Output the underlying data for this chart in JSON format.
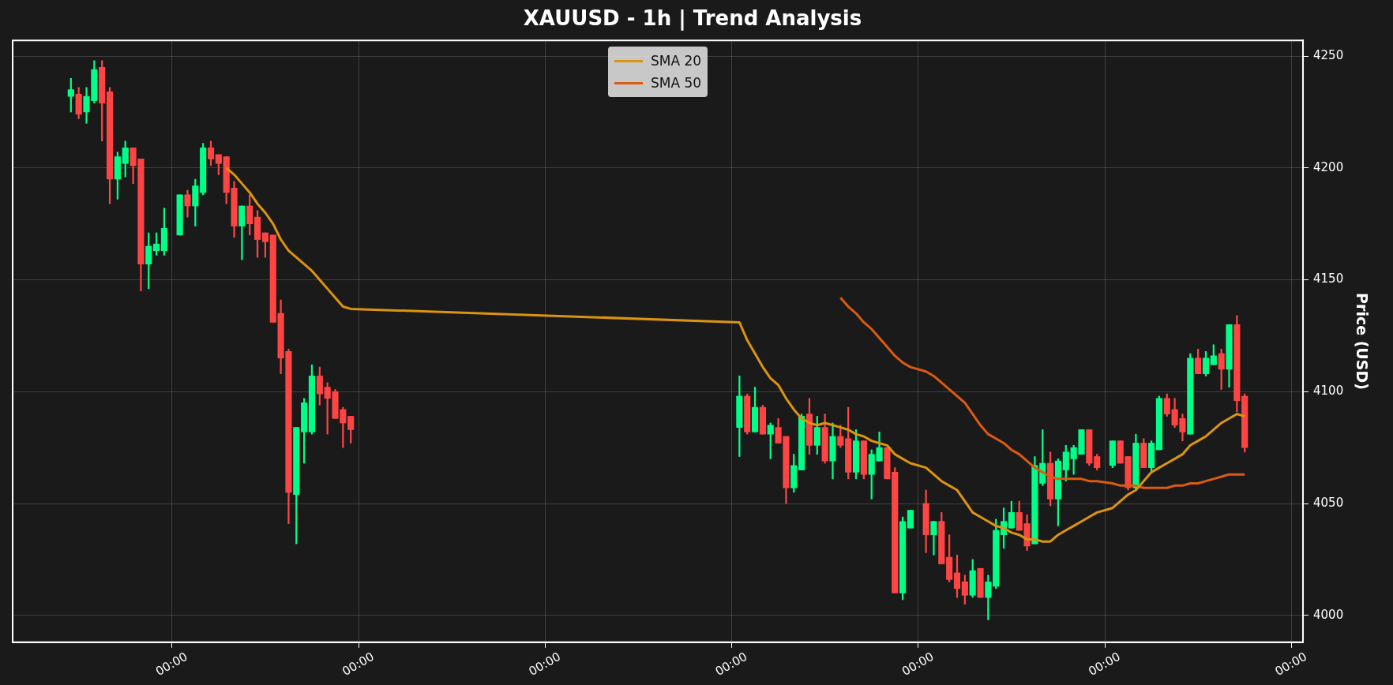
{
  "chart_data": {
    "type": "candlestick",
    "title": "XAUUSD - 1h | Trend Analysis",
    "ylabel": "Price (USD)",
    "x": [
      "--11-20T11:00",
      "--11-20T12:00",
      "--11-20T13:00",
      "--11-20T14:00",
      "--11-20T15:00",
      "--11-20T16:00",
      "--11-20T17:00",
      "--11-20T18:00",
      "--11-20T19:00",
      "--11-20T20:00",
      "--11-20T21:00",
      "--11-20T22:00",
      "--11-20T23:00",
      "--11-21T01:00",
      "--11-21T02:00",
      "--11-21T03:00",
      "--11-21T04:00",
      "--11-21T05:00",
      "--11-21T06:00",
      "--11-21T07:00",
      "--11-21T08:00",
      "--11-21T09:00",
      "--11-21T10:00",
      "--11-21T11:00",
      "--11-21T12:00",
      "--11-21T13:00",
      "--11-21T14:00",
      "--11-21T15:00",
      "--11-21T16:00",
      "--11-21T17:00",
      "--11-21T18:00",
      "--11-21T19:00",
      "--11-21T20:00",
      "--11-21T21:00",
      "--11-21T22:00",
      "--11-21T23:00",
      "--11-24T01:00",
      "--11-24T02:00",
      "--11-24T03:00",
      "--11-24T04:00",
      "--11-24T05:00",
      "--11-24T06:00",
      "--11-24T07:00",
      "--11-24T08:00",
      "--11-24T09:00",
      "--11-24T10:00",
      "--11-24T11:00",
      "--11-24T12:00",
      "--11-24T13:00",
      "--11-24T14:00",
      "--11-24T15:00",
      "--11-24T16:00",
      "--11-24T17:00",
      "--11-24T18:00",
      "--11-24T19:00",
      "--11-24T20:00",
      "--11-24T21:00",
      "--11-24T22:00",
      "--11-24T23:00",
      "--11-25T01:00",
      "--11-25T02:00",
      "--11-25T03:00",
      "--11-25T04:00",
      "--11-25T05:00",
      "--11-25T06:00",
      "--11-25T07:00",
      "--11-25T08:00",
      "--11-25T09:00",
      "--11-25T10:00",
      "--11-25T11:00",
      "--11-25T12:00",
      "--11-25T13:00",
      "--11-25T14:00",
      "--11-25T15:00",
      "--11-25T16:00",
      "--11-25T17:00",
      "--11-25T18:00",
      "--11-25T19:00",
      "--11-25T20:00",
      "--11-25T21:00",
      "--11-25T22:00",
      "--11-25T23:00",
      "--11-26T01:00",
      "--11-26T02:00",
      "--11-26T03:00",
      "--11-26T04:00",
      "--11-26T05:00",
      "--11-26T06:00",
      "--11-26T07:00",
      "--11-26T08:00",
      "--11-26T09:00",
      "--11-26T10:00",
      "--11-26T11:00",
      "--11-26T12:00",
      "--11-26T13:00",
      "--11-26T14:00",
      "--11-26T15:00",
      "--11-26T16:00",
      "--11-26T17:00",
      "--11-26T18:00"
    ],
    "ohlc": [
      [
        4232,
        4240,
        4225,
        4235
      ],
      [
        4233,
        4236,
        4222,
        4224
      ],
      [
        4225,
        4236,
        4220,
        4232
      ],
      [
        4230,
        4248,
        4229,
        4244
      ],
      [
        4245,
        4248,
        4212,
        4229
      ],
      [
        4234,
        4236,
        4184,
        4195
      ],
      [
        4195,
        4207,
        4186,
        4205
      ],
      [
        4202,
        4212,
        4196,
        4209
      ],
      [
        4209,
        4209,
        4193,
        4201
      ],
      [
        4204,
        4204,
        4145,
        4157
      ],
      [
        4157,
        4171,
        4146,
        4165
      ],
      [
        4163,
        4171,
        4161,
        4166
      ],
      [
        4163,
        4182,
        4161,
        4173
      ],
      [
        4170,
        4188,
        4170,
        4188
      ],
      [
        4188,
        4190,
        4178,
        4183
      ],
      [
        4183,
        4195,
        4174,
        4192
      ],
      [
        4189,
        4211,
        4188,
        4209
      ],
      [
        4209,
        4212,
        4201,
        4204
      ],
      [
        4206,
        4206,
        4197,
        4202
      ],
      [
        4205,
        4205,
        4184,
        4189
      ],
      [
        4191,
        4194,
        4169,
        4174
      ],
      [
        4174,
        4183,
        4159,
        4183
      ],
      [
        4183,
        4188,
        4170,
        4175
      ],
      [
        4178,
        4181,
        4160,
        4168
      ],
      [
        4171,
        4171,
        4160,
        4167
      ],
      [
        4170,
        4170,
        4131,
        4131
      ],
      [
        4135,
        4141,
        4108,
        4115
      ],
      [
        4118,
        4119,
        4041,
        4055
      ],
      [
        4054,
        4084,
        4032,
        4084
      ],
      [
        4082,
        4097,
        4068,
        4095
      ],
      [
        4082,
        4112,
        4081,
        4107
      ],
      [
        4107,
        4111,
        4094,
        4099
      ],
      [
        4102,
        4104,
        4081,
        4097
      ],
      [
        4100,
        4101,
        4088,
        4088
      ],
      [
        4092,
        4093,
        4075,
        4086
      ],
      [
        4089,
        4089,
        4077,
        4083
      ],
      [
        4084,
        4107,
        4071,
        4098
      ],
      [
        4098,
        4099,
        4081,
        4082
      ],
      [
        4082,
        4102,
        4082,
        4093
      ],
      [
        4093,
        4094,
        4081,
        4081
      ],
      [
        4081,
        4086,
        4070,
        4085
      ],
      [
        4084,
        4088,
        4077,
        4077
      ],
      [
        4080,
        4080,
        4050,
        4057
      ],
      [
        4057,
        4072,
        4055,
        4067
      ],
      [
        4065,
        4090,
        4065,
        4089
      ],
      [
        4090,
        4097,
        4072,
        4076
      ],
      [
        4076,
        4089,
        4072,
        4084
      ],
      [
        4084,
        4090,
        4068,
        4069
      ],
      [
        4069,
        4086,
        4061,
        4080
      ],
      [
        4080,
        4085,
        4075,
        4076
      ],
      [
        4079,
        4093,
        4061,
        4064
      ],
      [
        4064,
        4083,
        4061,
        4078
      ],
      [
        4078,
        4078,
        4061,
        4063
      ],
      [
        4063,
        4074,
        4052,
        4072
      ],
      [
        4069,
        4082,
        4069,
        4075
      ],
      [
        4075,
        4075,
        4061,
        4061
      ],
      [
        4064,
        4066,
        4010,
        4010
      ],
      [
        4010,
        4044,
        4007,
        4042
      ],
      [
        4039,
        4047,
        4039,
        4047
      ],
      [
        4050,
        4056,
        4028,
        4036
      ],
      [
        4036,
        4042,
        4027,
        4042
      ],
      [
        4042,
        4046,
        4023,
        4023
      ],
      [
        4026,
        4036,
        4015,
        4016
      ],
      [
        4019,
        4027,
        4008,
        4012
      ],
      [
        4015,
        4018,
        4005,
        4009
      ],
      [
        4009,
        4025,
        4008,
        4020
      ],
      [
        4021,
        4021,
        4008,
        4008
      ],
      [
        4008,
        4018,
        3998,
        4015
      ],
      [
        4013,
        4043,
        4012,
        4038
      ],
      [
        4036,
        4048,
        4030,
        4042
      ],
      [
        4039,
        4051,
        4039,
        4046
      ],
      [
        4046,
        4051,
        4038,
        4038
      ],
      [
        4041,
        4045,
        4029,
        4031
      ],
      [
        4032,
        4071,
        4032,
        4067
      ],
      [
        4059,
        4083,
        4058,
        4068
      ],
      [
        4068,
        4073,
        4049,
        4052
      ],
      [
        4052,
        4070,
        4040,
        4069
      ],
      [
        4065,
        4076,
        4060,
        4073
      ],
      [
        4070,
        4076,
        4063,
        4075
      ],
      [
        4072,
        4083,
        4072,
        4083
      ],
      [
        4083,
        4083,
        4067,
        4068
      ],
      [
        4071,
        4072,
        4065,
        4066
      ],
      [
        4067,
        4078,
        4066,
        4078
      ],
      [
        4078,
        4078,
        4068,
        4068
      ],
      [
        4071,
        4071,
        4056,
        4057
      ],
      [
        4057,
        4081,
        4056,
        4077
      ],
      [
        4077,
        4079,
        4066,
        4066
      ],
      [
        4066,
        4078,
        4064,
        4077
      ],
      [
        4074,
        4098,
        4074,
        4097
      ],
      [
        4097,
        4099,
        4089,
        4090
      ],
      [
        4092,
        4097,
        4084,
        4085
      ],
      [
        4088,
        4090,
        4078,
        4082
      ],
      [
        4081,
        4117,
        4081,
        4115
      ],
      [
        4115,
        4119,
        4108,
        4108
      ],
      [
        4108,
        4118,
        4107,
        4115
      ],
      [
        4112,
        4121,
        4112,
        4116
      ],
      [
        4117,
        4119,
        4101,
        4110
      ],
      [
        4110,
        4130,
        4102,
        4130
      ],
      [
        4130,
        4134,
        4091,
        4096
      ],
      [
        4098,
        4099,
        4073,
        4075
      ]
    ],
    "colors": [
      "#00ff88",
      "#ff4444",
      "#00ff88",
      "#00ff88",
      "#ff4444",
      "#ff4444",
      "#00ff88",
      "#00ff88",
      "#ff4444",
      "#ff4444",
      "#00ff88",
      "#00ff88",
      "#00ff88",
      "#00ff88",
      "#ff4444",
      "#00ff88",
      "#00ff88",
      "#ff4444",
      "#ff4444",
      "#ff4444",
      "#ff4444",
      "#00ff88",
      "#ff4444",
      "#ff4444",
      "#ff4444",
      "#ff4444",
      "#ff4444",
      "#ff4444",
      "#00ff88",
      "#00ff88",
      "#00ff88",
      "#ff4444",
      "#ff4444",
      "#ff4444",
      "#ff4444",
      "#ff4444",
      "#00ff88",
      "#ff4444",
      "#00ff88",
      "#ff4444",
      "#00ff88",
      "#ff4444",
      "#ff4444",
      "#00ff88",
      "#00ff88",
      "#ff4444",
      "#00ff88",
      "#ff4444",
      "#00ff88",
      "#ff4444",
      "#ff4444",
      "#00ff88",
      "#ff4444",
      "#00ff88",
      "#00ff88",
      "#ff4444",
      "#ff4444",
      "#00ff88",
      "#00ff88",
      "#ff4444",
      "#00ff88",
      "#ff4444",
      "#ff4444",
      "#ff4444",
      "#ff4444",
      "#00ff88",
      "#ff4444",
      "#00ff88",
      "#00ff88",
      "#00ff88",
      "#00ff88",
      "#ff4444",
      "#ff4444",
      "#00ff88",
      "#00ff88",
      "#ff4444",
      "#00ff88",
      "#00ff88",
      "#00ff88",
      "#00ff88",
      "#ff4444",
      "#ff4444",
      "#00ff88",
      "#ff4444",
      "#ff4444",
      "#00ff88",
      "#ff4444",
      "#00ff88",
      "#00ff88",
      "#ff4444",
      "#ff4444",
      "#ff4444",
      "#00ff88",
      "#ff4444",
      "#00ff88",
      "#00ff88",
      "#ff4444",
      "#00ff88",
      "#ff4444",
      "#ff4444"
    ],
    "series": [
      {
        "type": "line",
        "name": "SMA 20",
        "color": "#db9410",
        "x": [
          "--11-21T07:00",
          "--11-21T08:00",
          "--11-21T09:00",
          "--11-21T10:00",
          "--11-21T11:00",
          "--11-21T12:00",
          "--11-21T13:00",
          "--11-21T14:00",
          "--11-21T15:00",
          "--11-21T16:00",
          "--11-21T17:00",
          "--11-21T18:00",
          "--11-21T19:00",
          "--11-21T20:00",
          "--11-21T21:00",
          "--11-21T22:00",
          "--11-21T23:00",
          "--11-24T01:00",
          "--11-24T02:00",
          "--11-24T03:00",
          "--11-24T04:00",
          "--11-24T05:00",
          "--11-24T06:00",
          "--11-24T07:00",
          "--11-24T08:00",
          "--11-24T09:00",
          "--11-24T10:00",
          "--11-24T11:00",
          "--11-24T12:00",
          "--11-24T13:00",
          "--11-24T14:00",
          "--11-24T15:00",
          "--11-24T16:00",
          "--11-24T17:00",
          "--11-24T18:00",
          "--11-24T19:00",
          "--11-24T20:00",
          "--11-24T21:00",
          "--11-24T22:00",
          "--11-24T23:00",
          "--11-25T01:00",
          "--11-25T02:00",
          "--11-25T03:00",
          "--11-25T04:00",
          "--11-25T05:00",
          "--11-25T06:00",
          "--11-25T07:00",
          "--11-25T08:00",
          "--11-25T09:00",
          "--11-25T10:00",
          "--11-25T11:00",
          "--11-25T12:00",
          "--11-25T13:00",
          "--11-25T14:00",
          "--11-25T15:00",
          "--11-25T16:00",
          "--11-25T17:00",
          "--11-25T18:00",
          "--11-25T19:00",
          "--11-25T20:00",
          "--11-25T21:00",
          "--11-25T22:00",
          "--11-25T23:00",
          "--11-26T01:00",
          "--11-26T02:00",
          "--11-26T03:00",
          "--11-26T04:00",
          "--11-26T05:00",
          "--11-26T06:00",
          "--11-26T07:00",
          "--11-26T08:00",
          "--11-26T09:00",
          "--11-26T10:00",
          "--11-26T11:00",
          "--11-26T12:00",
          "--11-26T13:00",
          "--11-26T14:00",
          "--11-26T15:00",
          "--11-26T16:00",
          "--11-26T17:00",
          "--11-26T18:00"
        ],
        "values": [
          4200,
          4197,
          4193,
          4189,
          4184,
          4180,
          4175,
          4168,
          4163,
          4160,
          4157,
          4154,
          4150,
          4146,
          4142,
          4138,
          4137,
          4131,
          4123,
          4117,
          4111,
          4106,
          4103,
          4097,
          4092,
          4088,
          4086,
          4085,
          4086,
          4085,
          4084,
          4083,
          4081,
          4080,
          4078,
          4077,
          4076,
          4072,
          4070,
          4068,
          4066,
          4063,
          4060,
          4058,
          4056,
          4051,
          4046,
          4044,
          4042,
          4040,
          4039,
          4037,
          4036,
          4034,
          4034,
          4033,
          4033,
          4036,
          4038,
          4040,
          4042,
          4044,
          4046,
          4048,
          4051,
          4054,
          4056,
          4060,
          4064,
          4066,
          4068,
          4070,
          4072,
          4076,
          4078,
          4080,
          4083,
          4086,
          4088,
          4090,
          4089
        ]
      },
      {
        "type": "line",
        "name": "SMA 50",
        "color": "#dc5a12",
        "x": [
          "--11-24T14:00",
          "--11-24T15:00",
          "--11-24T16:00",
          "--11-24T17:00",
          "--11-24T18:00",
          "--11-24T19:00",
          "--11-24T20:00",
          "--11-24T21:00",
          "--11-24T22:00",
          "--11-24T23:00",
          "--11-25T01:00",
          "--11-25T02:00",
          "--11-25T03:00",
          "--11-25T04:00",
          "--11-25T05:00",
          "--11-25T06:00",
          "--11-25T07:00",
          "--11-25T08:00",
          "--11-25T09:00",
          "--11-25T10:00",
          "--11-25T11:00",
          "--11-25T12:00",
          "--11-25T13:00",
          "--11-25T14:00",
          "--11-25T15:00",
          "--11-25T16:00",
          "--11-25T17:00",
          "--11-25T18:00",
          "--11-25T19:00",
          "--11-25T20:00",
          "--11-25T21:00",
          "--11-25T22:00",
          "--11-25T23:00",
          "--11-26T01:00",
          "--11-26T02:00",
          "--11-26T03:00",
          "--11-26T04:00",
          "--11-26T05:00",
          "--11-26T06:00",
          "--11-26T07:00",
          "--11-26T08:00",
          "--11-26T09:00",
          "--11-26T10:00",
          "--11-26T11:00",
          "--11-26T12:00",
          "--11-26T13:00",
          "--11-26T14:00",
          "--11-26T15:00",
          "--11-26T16:00",
          "--11-26T17:00",
          "--11-26T18:00"
        ],
        "values": [
          4142,
          4138,
          4135,
          4131,
          4128,
          4124,
          4120,
          4116,
          4113,
          4111,
          4109,
          4107,
          4104,
          4101,
          4098,
          4095,
          4090,
          4085,
          4081,
          4079,
          4077,
          4074,
          4072,
          4069,
          4066,
          4064,
          4062,
          4061,
          4061,
          4061,
          4061,
          4060,
          4060,
          4059,
          4058,
          4058,
          4058,
          4057,
          4057,
          4057,
          4057,
          4058,
          4058,
          4059,
          4059,
          4060,
          4061,
          4062,
          4063,
          4063,
          4063
        ]
      }
    ],
    "xlim": [
      "--11-20T03:30",
      "--11-27T01:30"
    ],
    "xticks": [
      {
        "value": "--11-21T00:00",
        "label": "00:00"
      },
      {
        "value": "--11-22T00:00",
        "label": "00:00"
      },
      {
        "value": "--11-23T00:00",
        "label": "00:00"
      },
      {
        "value": "--11-24T00:00",
        "label": "00:00"
      },
      {
        "value": "--11-25T00:00",
        "label": "00:00"
      },
      {
        "value": "--11-26T00:00",
        "label": "00:00"
      },
      {
        "value": "--11-27T00:00",
        "label": "00:00"
      }
    ],
    "ylim": [
      3988,
      4257
    ],
    "yticks": [
      4000,
      4050,
      4100,
      4150,
      4200,
      4250
    ],
    "grid": true,
    "legend": "top"
  }
}
